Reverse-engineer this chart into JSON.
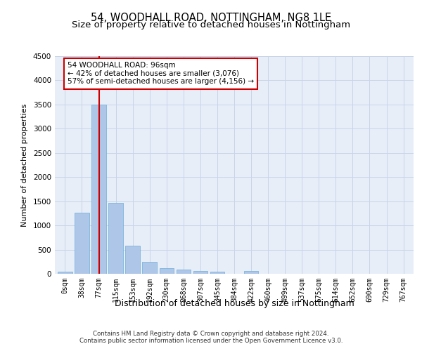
{
  "title1": "54, WOODHALL ROAD, NOTTINGHAM, NG8 1LE",
  "title2": "Size of property relative to detached houses in Nottingham",
  "xlabel": "Distribution of detached houses by size in Nottingham",
  "ylabel": "Number of detached properties",
  "footer1": "Contains HM Land Registry data © Crown copyright and database right 2024.",
  "footer2": "Contains public sector information licensed under the Open Government Licence v3.0.",
  "bin_labels": [
    "0sqm",
    "38sqm",
    "77sqm",
    "115sqm",
    "153sqm",
    "192sqm",
    "230sqm",
    "268sqm",
    "307sqm",
    "345sqm",
    "384sqm",
    "422sqm",
    "460sqm",
    "499sqm",
    "537sqm",
    "575sqm",
    "614sqm",
    "652sqm",
    "690sqm",
    "729sqm",
    "767sqm"
  ],
  "bar_values": [
    50,
    1270,
    3500,
    1470,
    575,
    240,
    115,
    80,
    55,
    40,
    0,
    55,
    0,
    0,
    0,
    0,
    0,
    0,
    0,
    0,
    0
  ],
  "bar_color": "#aec6e8",
  "bar_edgecolor": "#6baed6",
  "property_bin_index": 2,
  "vline_color": "#cc0000",
  "annotation_text": "54 WOODHALL ROAD: 96sqm\n← 42% of detached houses are smaller (3,076)\n57% of semi-detached houses are larger (4,156) →",
  "annotation_box_edgecolor": "#cc0000",
  "annotation_box_facecolor": "#ffffff",
  "ylim": [
    0,
    4500
  ],
  "yticks": [
    0,
    500,
    1000,
    1500,
    2000,
    2500,
    3000,
    3500,
    4000,
    4500
  ],
  "grid_color": "#c8d4e8",
  "plot_bg_color": "#e8eef8",
  "title1_fontsize": 10.5,
  "title2_fontsize": 9.5,
  "xlabel_fontsize": 9,
  "ylabel_fontsize": 8,
  "tick_fontsize": 7,
  "footer_fontsize": 6.2
}
